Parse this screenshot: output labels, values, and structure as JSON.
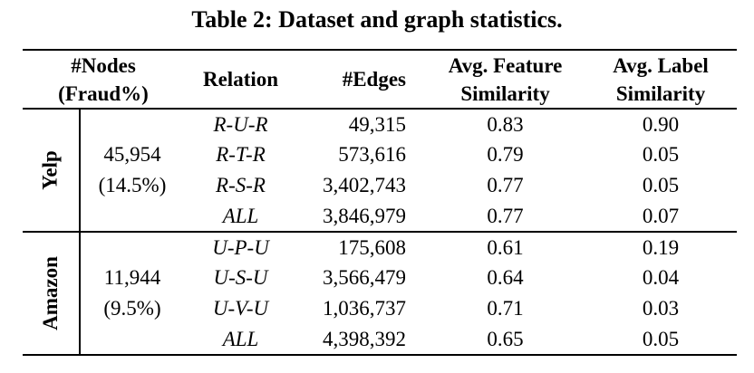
{
  "title": "Table 2: Dataset and graph statistics.",
  "header": {
    "nodes_line1": "#Nodes",
    "nodes_line2": "(Fraud%)",
    "relation": "Relation",
    "edges": "#Edges",
    "feature_line1": "Avg. Feature",
    "feature_line2": "Similarity",
    "label_line1": "Avg. Label",
    "label_line2": "Similarity"
  },
  "sections": [
    {
      "dataset": "Yelp",
      "nodes": "45,954",
      "fraud": "(14.5%)",
      "rows": [
        {
          "relation": "R-U-R",
          "edges": "49,315",
          "feature": "0.83",
          "label": "0.90"
        },
        {
          "relation": "R-T-R",
          "edges": "573,616",
          "feature": "0.79",
          "label": "0.05"
        },
        {
          "relation": "R-S-R",
          "edges": "3,402,743",
          "feature": "0.77",
          "label": "0.05"
        },
        {
          "relation": "ALL",
          "edges": "3,846,979",
          "feature": "0.77",
          "label": "0.07"
        }
      ]
    },
    {
      "dataset": "Amazon",
      "nodes": "11,944",
      "fraud": "(9.5%)",
      "rows": [
        {
          "relation": "U-P-U",
          "edges": "175,608",
          "feature": "0.61",
          "label": "0.19"
        },
        {
          "relation": "U-S-U",
          "edges": "3,566,479",
          "feature": "0.64",
          "label": "0.04"
        },
        {
          "relation": "U-V-U",
          "edges": "1,036,737",
          "feature": "0.71",
          "label": "0.03"
        },
        {
          "relation": "ALL",
          "edges": "4,398,392",
          "feature": "0.65",
          "label": "0.05"
        }
      ]
    }
  ],
  "chart_data": {
    "type": "table",
    "title": "Table 2: Dataset and graph statistics.",
    "columns": [
      "Dataset",
      "#Nodes (Fraud%)",
      "Relation",
      "#Edges",
      "Avg. Feature Similarity",
      "Avg. Label Similarity"
    ],
    "rows": [
      [
        "Yelp",
        "45,954 (14.5%)",
        "R-U-R",
        49315,
        0.83,
        0.9
      ],
      [
        "Yelp",
        "45,954 (14.5%)",
        "R-T-R",
        573616,
        0.79,
        0.05
      ],
      [
        "Yelp",
        "45,954 (14.5%)",
        "R-S-R",
        3402743,
        0.77,
        0.05
      ],
      [
        "Yelp",
        "45,954 (14.5%)",
        "ALL",
        3846979,
        0.77,
        0.07
      ],
      [
        "Amazon",
        "11,944 (9.5%)",
        "U-P-U",
        175608,
        0.61,
        0.19
      ],
      [
        "Amazon",
        "11,944 (9.5%)",
        "U-S-U",
        3566479,
        0.64,
        0.04
      ],
      [
        "Amazon",
        "11,944 (9.5%)",
        "U-V-U",
        1036737,
        0.71,
        0.03
      ],
      [
        "Amazon",
        "11,944 (9.5%)",
        "ALL",
        4398392,
        0.65,
        0.05
      ]
    ]
  }
}
